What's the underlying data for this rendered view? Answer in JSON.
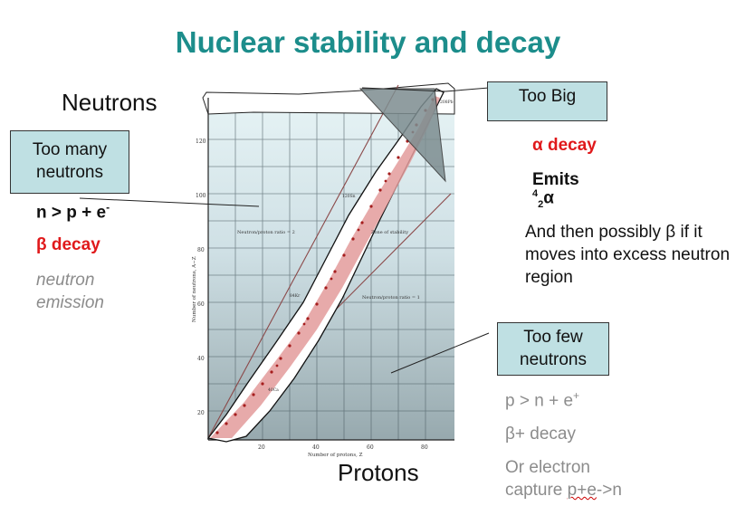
{
  "slide": {
    "title": "Nuclear stability and decay",
    "neutrons_label": "Neutrons",
    "protons_label": "Protons"
  },
  "callouts": {
    "too_many": "Too many neutrons",
    "too_big": "Too Big",
    "too_few": "Too few neutrons"
  },
  "left_notes": {
    "reaction": "n > p + e",
    "reaction_sup": "-",
    "beta_symbol": "β",
    "beta_text": " decay",
    "emission": "neutron emission"
  },
  "right_notes": {
    "alpha_symbol": "α",
    "alpha_text": " decay",
    "emits": "Emits",
    "alpha_sup": "4",
    "alpha_sub": "2",
    "alpha_char": "α",
    "then_beta": "And then possibly β if it moves into excess neutron region"
  },
  "bottom_right_notes": {
    "reaction": "p > n + e",
    "reaction_sup": "+",
    "beta_plus": "β+ decay",
    "capture_1": "Or electron",
    "capture_2a": "capture ",
    "capture_2b": "p+e",
    "capture_2c": "->n"
  },
  "figure": {
    "y_axis_title": "Number of neutrons, A−Z",
    "x_axis_title": "Number of protons, Z",
    "y_ticks": [
      "20",
      "40",
      "60",
      "80",
      "100",
      "120"
    ],
    "x_ticks": [
      "20",
      "40",
      "60",
      "80"
    ],
    "label_ratio2": "Neutron/proton ratio = 2",
    "label_ratio1": "Neutron/proton ratio = 1",
    "label_zone": "Zone of stability",
    "iso_ca": "40Ca",
    "iso_kr": "84Kr",
    "iso_sn": "120Sn",
    "iso_pb": "208Pb"
  },
  "colors": {
    "title": "#1c8d8b",
    "callout_fill": "#bfe0e3",
    "accent_red": "#e0191b",
    "grey_text": "#8c8c8c"
  }
}
